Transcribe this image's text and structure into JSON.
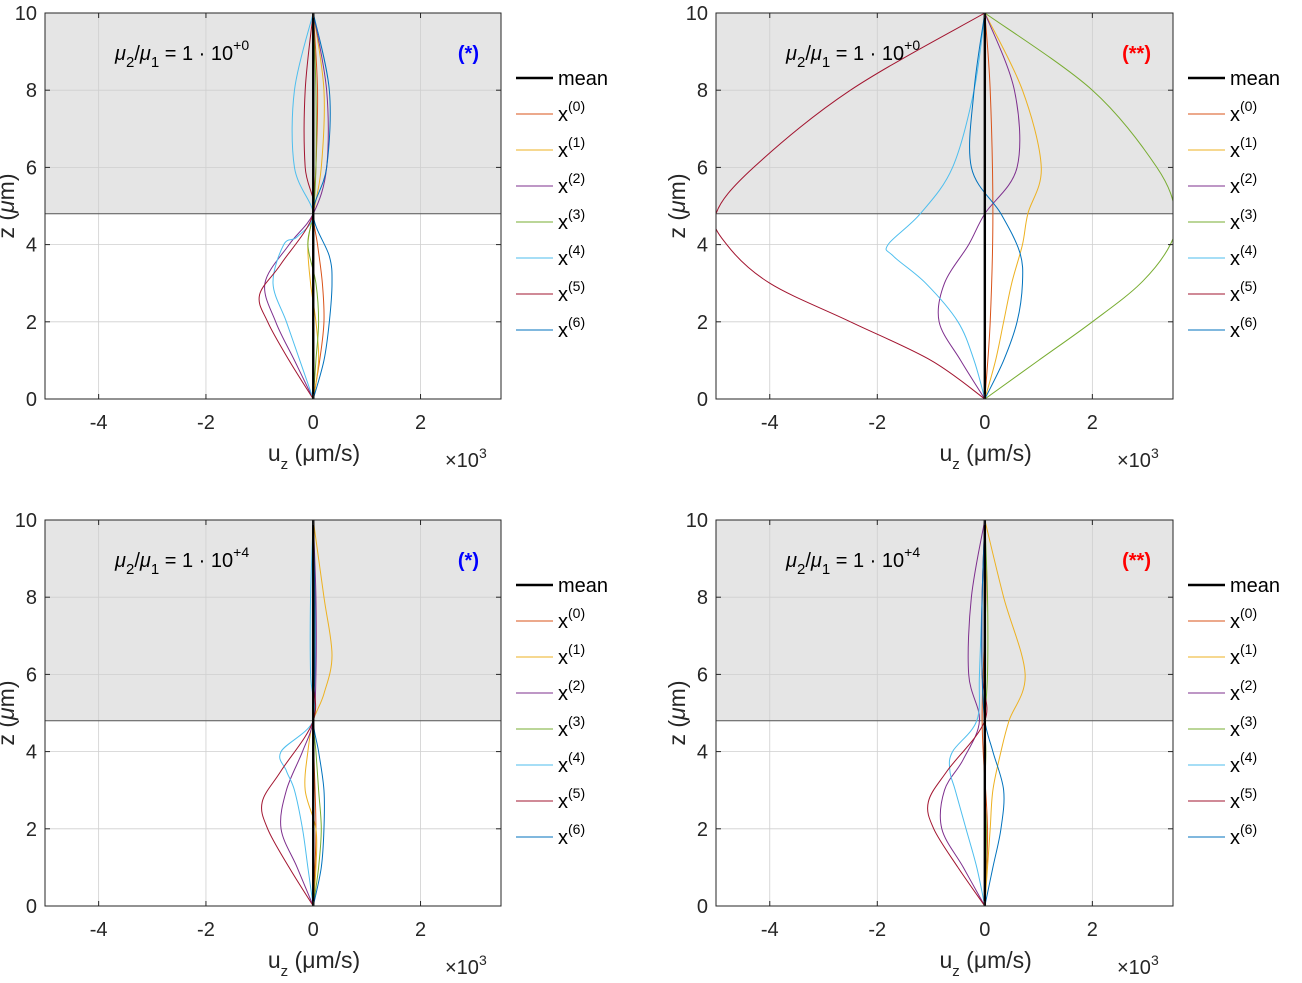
{
  "figure": {
    "series_colors": [
      "#000000",
      "#D95319",
      "#EDB120",
      "#7E2F8E",
      "#77AC30",
      "#4DBEEE",
      "#A2142F",
      "#0072BD"
    ],
    "shade_color": "#e5e5e5"
  },
  "chart_data": [
    {
      "type": "line",
      "ratio_label": {
        "num": "μ",
        "num_sub": "2",
        "den": "μ",
        "den_sub": "1",
        "value": "= 1 · 10",
        "exp": "+0"
      },
      "marker": {
        "text": "(*)",
        "color": "#0000ff"
      },
      "xlabel": {
        "main": "u",
        "sub": "z",
        "unit": " (μm/s)"
      },
      "ylabel": {
        "main": "z (",
        "mu": "μ",
        "rest": "m)"
      },
      "xscale": {
        "base": "×10",
        "exp": "3"
      },
      "xlim": [
        -5,
        3.5
      ],
      "ylim": [
        0,
        10
      ],
      "xticks": [
        "-4",
        "-2",
        "0",
        "2"
      ],
      "xtick_values": [
        -4,
        -2,
        0,
        2
      ],
      "yticks": [
        "0",
        "2",
        "4",
        "6",
        "8",
        "10"
      ],
      "ytick_values": [
        0,
        2,
        4,
        6,
        8,
        10
      ],
      "grid": true,
      "shaded_region_z": [
        4.8,
        10
      ],
      "interface_z": 4.8,
      "legend_placement": "outside-right",
      "series": [
        {
          "name": "mean",
          "base": "mean",
          "sup": "",
          "x": [
            0,
            0
          ],
          "z": [
            0,
            10
          ]
        },
        {
          "name": "x(0)",
          "base": "x",
          "sup": "(0)",
          "z": [
            0,
            1,
            2,
            3,
            4,
            4.8,
            6,
            8,
            10
          ],
          "x": [
            0,
            0.12,
            0.2,
            0.17,
            0.08,
            0,
            0.05,
            0.08,
            0
          ]
        },
        {
          "name": "x(1)",
          "base": "x",
          "sup": "(1)",
          "z": [
            0,
            1,
            2,
            3,
            4,
            4.8,
            6,
            8,
            10
          ],
          "x": [
            0,
            0.1,
            0.05,
            -0.05,
            -0.1,
            0,
            0.15,
            0.2,
            0
          ]
        },
        {
          "name": "x(2)",
          "base": "x",
          "sup": "(2)",
          "z": [
            0,
            1,
            2,
            3,
            4,
            4.8,
            6,
            8,
            10
          ],
          "x": [
            0,
            -0.35,
            -0.7,
            -0.9,
            -0.45,
            0,
            0.25,
            0.25,
            0
          ]
        },
        {
          "name": "x(3)",
          "base": "x",
          "sup": "(3)",
          "z": [
            0,
            1,
            2,
            3,
            4,
            4.8,
            6,
            8,
            10
          ],
          "x": [
            0,
            0.05,
            0.1,
            0.05,
            -0.1,
            0,
            0.05,
            0.05,
            0
          ]
        },
        {
          "name": "x(4)",
          "base": "x",
          "sup": "(4)",
          "z": [
            0,
            1,
            2,
            3,
            4,
            4.2,
            4.8,
            6,
            8,
            10
          ],
          "x": [
            0,
            -0.25,
            -0.5,
            -0.75,
            -0.55,
            -0.3,
            0,
            -0.35,
            -0.35,
            0
          ]
        },
        {
          "name": "x(5)",
          "base": "x",
          "sup": "(5)",
          "z": [
            0,
            1,
            2,
            2.7,
            3.5,
            4.8,
            6,
            8,
            10
          ],
          "x": [
            0,
            -0.45,
            -0.85,
            -1.0,
            -0.6,
            0,
            -0.15,
            -0.15,
            0
          ]
        },
        {
          "name": "x(6)",
          "base": "x",
          "sup": "(6)",
          "z": [
            0,
            1,
            2,
            3,
            3.7,
            4.8,
            6,
            8,
            10
          ],
          "x": [
            0,
            0.2,
            0.3,
            0.35,
            0.3,
            0,
            0.25,
            0.3,
            0
          ]
        }
      ]
    },
    {
      "type": "line",
      "ratio_label": {
        "num": "μ",
        "num_sub": "2",
        "den": "μ",
        "den_sub": "1",
        "value": "= 1 · 10",
        "exp": "+0"
      },
      "marker": {
        "text": "(**)",
        "color": "#ff0000"
      },
      "xlabel": {
        "main": "u",
        "sub": "z",
        "unit": " (μm/s)"
      },
      "ylabel": {
        "main": "z (",
        "mu": "μ",
        "rest": "m)"
      },
      "xscale": {
        "base": "×10",
        "exp": "3"
      },
      "xlim": [
        -5,
        3.5
      ],
      "ylim": [
        0,
        10
      ],
      "xticks": [
        "-4",
        "-2",
        "0",
        "2"
      ],
      "xtick_values": [
        -4,
        -2,
        0,
        2
      ],
      "yticks": [
        "0",
        "2",
        "4",
        "6",
        "8",
        "10"
      ],
      "ytick_values": [
        0,
        2,
        4,
        6,
        8,
        10
      ],
      "grid": true,
      "shaded_region_z": [
        4.8,
        10
      ],
      "interface_z": 4.8,
      "legend_placement": "outside-right",
      "series": [
        {
          "name": "mean",
          "base": "mean",
          "sup": "",
          "x": [
            0,
            0
          ],
          "z": [
            0,
            10
          ]
        },
        {
          "name": "x(0)",
          "base": "x",
          "sup": "(0)",
          "z": [
            0,
            2,
            4.8,
            8,
            10
          ],
          "x": [
            0,
            0.1,
            0.15,
            0.1,
            0
          ]
        },
        {
          "name": "x(1)",
          "base": "x",
          "sup": "(1)",
          "z": [
            0,
            1,
            2,
            3,
            4,
            4.8,
            6,
            8,
            10
          ],
          "x": [
            0,
            0.2,
            0.35,
            0.5,
            0.7,
            0.8,
            1.05,
            0.7,
            0
          ]
        },
        {
          "name": "x(2)",
          "base": "x",
          "sup": "(2)",
          "z": [
            0,
            1,
            2,
            3,
            4,
            4.8,
            6,
            8,
            10
          ],
          "x": [
            0,
            -0.45,
            -0.85,
            -0.75,
            -0.3,
            0,
            0.6,
            0.55,
            0
          ]
        },
        {
          "name": "x(3)",
          "base": "x",
          "sup": "(3)",
          "z": [
            0,
            1,
            2,
            3,
            4,
            4.8,
            6,
            8,
            10
          ],
          "x": [
            0,
            1.0,
            2.0,
            2.9,
            3.45,
            3.55,
            3.2,
            2.0,
            0
          ]
        },
        {
          "name": "x(4)",
          "base": "x",
          "sup": "(4)",
          "z": [
            0,
            1,
            2,
            3,
            3.7,
            4,
            4.8,
            6,
            8,
            10
          ],
          "x": [
            0,
            -0.2,
            -0.5,
            -1.1,
            -1.7,
            -1.8,
            -1.2,
            -0.6,
            -0.2,
            0
          ]
        },
        {
          "name": "x(5)",
          "base": "x",
          "sup": "(5)",
          "z": [
            0,
            1,
            2,
            3,
            4,
            4.8,
            6,
            8,
            10
          ],
          "x": [
            0,
            -1.0,
            -2.5,
            -4.0,
            -4.8,
            -5.0,
            -4.3,
            -2.5,
            0
          ]
        },
        {
          "name": "x(6)",
          "base": "x",
          "sup": "(6)",
          "z": [
            0,
            1,
            2,
            3,
            3.8,
            4.8,
            6,
            8,
            10
          ],
          "x": [
            0,
            0.35,
            0.6,
            0.7,
            0.65,
            0.3,
            -0.25,
            -0.2,
            0
          ]
        }
      ]
    },
    {
      "type": "line",
      "ratio_label": {
        "num": "μ",
        "num_sub": "2",
        "den": "μ",
        "den_sub": "1",
        "value": "= 1 · 10",
        "exp": "+4"
      },
      "marker": {
        "text": "(*)",
        "color": "#0000ff"
      },
      "xlabel": {
        "main": "u",
        "sub": "z",
        "unit": " (μm/s)"
      },
      "ylabel": {
        "main": "z (",
        "mu": "μ",
        "rest": "m)"
      },
      "xscale": {
        "base": "×10",
        "exp": "3"
      },
      "xlim": [
        -5,
        3.5
      ],
      "ylim": [
        0,
        10
      ],
      "xticks": [
        "-4",
        "-2",
        "0",
        "2"
      ],
      "xtick_values": [
        -4,
        -2,
        0,
        2
      ],
      "yticks": [
        "0",
        "2",
        "4",
        "6",
        "8",
        "10"
      ],
      "ytick_values": [
        0,
        2,
        4,
        6,
        8,
        10
      ],
      "grid": true,
      "shaded_region_z": [
        4.8,
        10
      ],
      "interface_z": 4.8,
      "legend_placement": "outside-right",
      "series": [
        {
          "name": "mean",
          "base": "mean",
          "sup": "",
          "x": [
            0,
            0
          ],
          "z": [
            0,
            10
          ]
        },
        {
          "name": "x(0)",
          "base": "x",
          "sup": "(0)",
          "z": [
            0,
            2,
            4.8,
            8,
            10
          ],
          "x": [
            0,
            0.05,
            0,
            0.03,
            0
          ]
        },
        {
          "name": "x(1)",
          "base": "x",
          "sup": "(1)",
          "z": [
            0,
            1,
            2,
            3,
            4,
            4.8,
            5.5,
            6.5,
            8,
            10
          ],
          "x": [
            0,
            0.05,
            0.05,
            -0.15,
            -0.1,
            0,
            0.2,
            0.35,
            0.2,
            0
          ]
        },
        {
          "name": "x(2)",
          "base": "x",
          "sup": "(2)",
          "z": [
            0,
            1,
            2,
            3,
            4,
            4.8,
            6,
            8,
            10
          ],
          "x": [
            0,
            -0.3,
            -0.6,
            -0.5,
            -0.2,
            0,
            0.05,
            0.05,
            0
          ]
        },
        {
          "name": "x(3)",
          "base": "x",
          "sup": "(3)",
          "z": [
            0,
            1,
            2,
            3,
            4,
            4.8,
            6,
            8,
            10
          ],
          "x": [
            0,
            0.1,
            0.15,
            0.1,
            0.05,
            0,
            0.02,
            0.02,
            0
          ]
        },
        {
          "name": "x(4)",
          "base": "x",
          "sup": "(4)",
          "z": [
            0,
            1,
            2,
            3,
            3.5,
            4,
            4.8,
            6,
            8,
            10
          ],
          "x": [
            0,
            -0.1,
            -0.2,
            -0.35,
            -0.5,
            -0.6,
            0,
            -0.05,
            -0.05,
            0
          ]
        },
        {
          "name": "x(5)",
          "base": "x",
          "sup": "(5)",
          "z": [
            0,
            1,
            2,
            2.7,
            3.5,
            4.8,
            6,
            8,
            10
          ],
          "x": [
            0,
            -0.45,
            -0.85,
            -0.95,
            -0.6,
            0,
            0,
            0,
            0
          ]
        },
        {
          "name": "x(6)",
          "base": "x",
          "sup": "(6)",
          "z": [
            0,
            1,
            2,
            3,
            4,
            4.8,
            6,
            8,
            10
          ],
          "x": [
            0,
            0.15,
            0.2,
            0.2,
            0.1,
            0,
            0.03,
            0.03,
            0
          ]
        }
      ]
    },
    {
      "type": "line",
      "ratio_label": {
        "num": "μ",
        "num_sub": "2",
        "den": "μ",
        "den_sub": "1",
        "value": "= 1 · 10",
        "exp": "+4"
      },
      "marker": {
        "text": "(**)",
        "color": "#ff0000"
      },
      "xlabel": {
        "main": "u",
        "sub": "z",
        "unit": " (μm/s)"
      },
      "ylabel": {
        "main": "z (",
        "mu": "μ",
        "rest": "m)"
      },
      "xscale": {
        "base": "×10",
        "exp": "3"
      },
      "xlim": [
        -5,
        3.5
      ],
      "ylim": [
        0,
        10
      ],
      "xticks": [
        "-4",
        "-2",
        "0",
        "2"
      ],
      "xtick_values": [
        -4,
        -2,
        0,
        2
      ],
      "yticks": [
        "0",
        "2",
        "4",
        "6",
        "8",
        "10"
      ],
      "ytick_values": [
        0,
        2,
        4,
        6,
        8,
        10
      ],
      "grid": true,
      "shaded_region_z": [
        4.8,
        10
      ],
      "interface_z": 4.8,
      "legend_placement": "outside-right",
      "series": [
        {
          "name": "mean",
          "base": "mean",
          "sup": "",
          "x": [
            0,
            0
          ],
          "z": [
            0,
            10
          ]
        },
        {
          "name": "x(0)",
          "base": "x",
          "sup": "(0)",
          "z": [
            0,
            2,
            4.8,
            8,
            10
          ],
          "x": [
            0,
            0.05,
            -0.05,
            0.02,
            0
          ]
        },
        {
          "name": "x(1)",
          "base": "x",
          "sup": "(1)",
          "z": [
            0,
            1,
            2,
            3,
            4,
            4.8,
            6,
            8,
            10
          ],
          "x": [
            0,
            0.05,
            0.1,
            0.15,
            0.3,
            0.45,
            0.75,
            0.35,
            0
          ]
        },
        {
          "name": "x(2)",
          "base": "x",
          "sup": "(2)",
          "z": [
            0,
            1,
            2,
            3,
            3.8,
            4.8,
            6,
            8,
            10
          ],
          "x": [
            0,
            -0.4,
            -0.8,
            -0.75,
            -0.4,
            -0.1,
            -0.3,
            -0.25,
            0
          ]
        },
        {
          "name": "x(3)",
          "base": "x",
          "sup": "(3)",
          "z": [
            0,
            1,
            2,
            3,
            4,
            4.8,
            6,
            8,
            10
          ],
          "x": [
            0,
            0.02,
            0.03,
            0,
            0.02,
            0,
            0.05,
            0.05,
            0
          ]
        },
        {
          "name": "x(4)",
          "base": "x",
          "sup": "(4)",
          "z": [
            0,
            1,
            2,
            3,
            3.5,
            4,
            4.8,
            6,
            8,
            10
          ],
          "x": [
            0,
            -0.15,
            -0.35,
            -0.55,
            -0.65,
            -0.6,
            -0.15,
            -0.1,
            -0.05,
            0
          ]
        },
        {
          "name": "x(5)",
          "base": "x",
          "sup": "(5)",
          "z": [
            0,
            1,
            2,
            2.7,
            3.5,
            4.8,
            6,
            8,
            10
          ],
          "x": [
            0,
            -0.5,
            -0.95,
            -1.05,
            -0.7,
            0,
            -0.05,
            -0.05,
            0
          ]
        },
        {
          "name": "x(6)",
          "base": "x",
          "sup": "(6)",
          "z": [
            0,
            1,
            2,
            3,
            4,
            4.8,
            6,
            8,
            10
          ],
          "x": [
            0,
            0.15,
            0.3,
            0.35,
            0.15,
            0,
            -0.05,
            -0.05,
            0
          ]
        }
      ]
    }
  ]
}
